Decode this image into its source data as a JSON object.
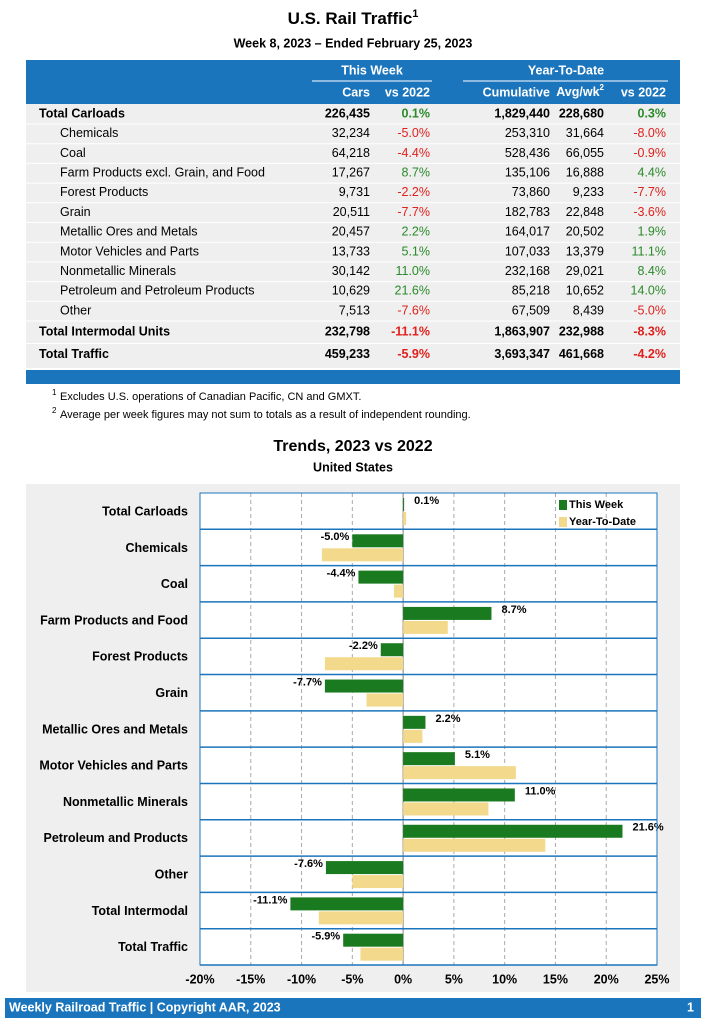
{
  "header": {
    "title": "U.S. Rail Traffic",
    "title_note": "1",
    "subtitle": "Week 8, 2023 – Ended February 25, 2023"
  },
  "table": {
    "groups": [
      "This Week",
      "Year-To-Date"
    ],
    "columns": [
      "Cars",
      "vs 2022",
      "Cumulative",
      "Avg/wk",
      "vs 2022"
    ],
    "avg_note": "2",
    "rows": [
      {
        "label": "Total Carloads",
        "total": true,
        "cells": [
          "226,435",
          "0.1%",
          "1,829,440",
          "228,680",
          "0.3%"
        ]
      },
      {
        "label": "Chemicals",
        "cells": [
          "32,234",
          "-5.0%",
          "253,310",
          "31,664",
          "-8.0%"
        ]
      },
      {
        "label": "Coal",
        "cells": [
          "64,218",
          "-4.4%",
          "528,436",
          "66,055",
          "-0.9%"
        ]
      },
      {
        "label": "Farm Products excl. Grain, and Food",
        "cells": [
          "17,267",
          "8.7%",
          "135,106",
          "16,888",
          "4.4%"
        ]
      },
      {
        "label": "Forest Products",
        "cells": [
          "9,731",
          "-2.2%",
          "73,860",
          "9,233",
          "-7.7%"
        ]
      },
      {
        "label": "Grain",
        "cells": [
          "20,511",
          "-7.7%",
          "182,783",
          "22,848",
          "-3.6%"
        ]
      },
      {
        "label": "Metallic Ores and Metals",
        "cells": [
          "20,457",
          "2.2%",
          "164,017",
          "20,502",
          "1.9%"
        ]
      },
      {
        "label": "Motor Vehicles and Parts",
        "cells": [
          "13,733",
          "5.1%",
          "107,033",
          "13,379",
          "11.1%"
        ]
      },
      {
        "label": "Nonmetallic Minerals",
        "cells": [
          "30,142",
          "11.0%",
          "232,168",
          "29,021",
          "8.4%"
        ]
      },
      {
        "label": "Petroleum and Petroleum Products",
        "cells": [
          "10,629",
          "21.6%",
          "85,218",
          "10,652",
          "14.0%"
        ]
      },
      {
        "label": "Other",
        "cells": [
          "7,513",
          "-7.6%",
          "67,509",
          "8,439",
          "-5.0%"
        ]
      },
      {
        "label": "Total Intermodal Units",
        "total": true,
        "cells": [
          "232,798",
          "-11.1%",
          "1,863,907",
          "232,988",
          "-8.3%"
        ]
      },
      {
        "label": "Total Traffic",
        "total": true,
        "cells": [
          "459,233",
          "-5.9%",
          "3,693,347",
          "461,668",
          "-4.2%"
        ]
      }
    ]
  },
  "footnotes": [
    {
      "mark": "1",
      "text": "Excludes U.S. operations of Canadian Pacific, CN and GMXT."
    },
    {
      "mark": "2",
      "text": "Average per week figures may not sum to totals as a result of independent rounding."
    }
  ],
  "chart_data": {
    "type": "bar",
    "orientation": "horizontal",
    "title": "Trends, 2023 vs 2022",
    "subtitle": "United States",
    "categories": [
      "Total Carloads",
      "Chemicals",
      "Coal",
      "Farm Products and Food",
      "Forest Products",
      "Grain",
      "Metallic Ores and Metals",
      "Motor Vehicles and Parts",
      "Nonmetallic Minerals",
      "Petroleum and Products",
      "Other",
      "Total Intermodal",
      "Total Traffic"
    ],
    "series": [
      {
        "name": "This Week",
        "color": "#1a7a1f",
        "values": [
          0.1,
          -5.0,
          -4.4,
          8.7,
          -2.2,
          -7.7,
          2.2,
          5.1,
          11.0,
          21.6,
          -7.6,
          -11.1,
          -5.9
        ],
        "value_labels": [
          "0.1%",
          "-5.0%",
          "-4.4%",
          "8.7%",
          "-2.2%",
          "-7.7%",
          "2.2%",
          "5.1%",
          "11.0%",
          "21.6%",
          "-7.6%",
          "-11.1%",
          "-5.9%"
        ]
      },
      {
        "name": "Year-To-Date",
        "color": "#f3d98b",
        "values": [
          0.3,
          -8.0,
          -0.9,
          4.4,
          -7.7,
          -3.6,
          1.9,
          11.1,
          8.4,
          14.0,
          -5.0,
          -8.3,
          -4.2
        ]
      }
    ],
    "xlim": [
      -20,
      25
    ],
    "xticks": [
      {
        "value": -20,
        "label": "-20%"
      },
      {
        "value": -15,
        "label": "-15%"
      },
      {
        "value": -10,
        "label": "-10%"
      },
      {
        "value": -5,
        "label": "-5%"
      },
      {
        "value": 0,
        "label": "0%"
      },
      {
        "value": 5,
        "label": "5%"
      },
      {
        "value": 10,
        "label": "10%"
      },
      {
        "value": 15,
        "label": "15%"
      },
      {
        "value": 20,
        "label": "20%"
      },
      {
        "value": 25,
        "label": "25%"
      }
    ],
    "grid": true,
    "legend": "upper right"
  },
  "footer": {
    "left": "Weekly Railroad Traffic | Copyright AAR, 2023",
    "page": "1"
  }
}
